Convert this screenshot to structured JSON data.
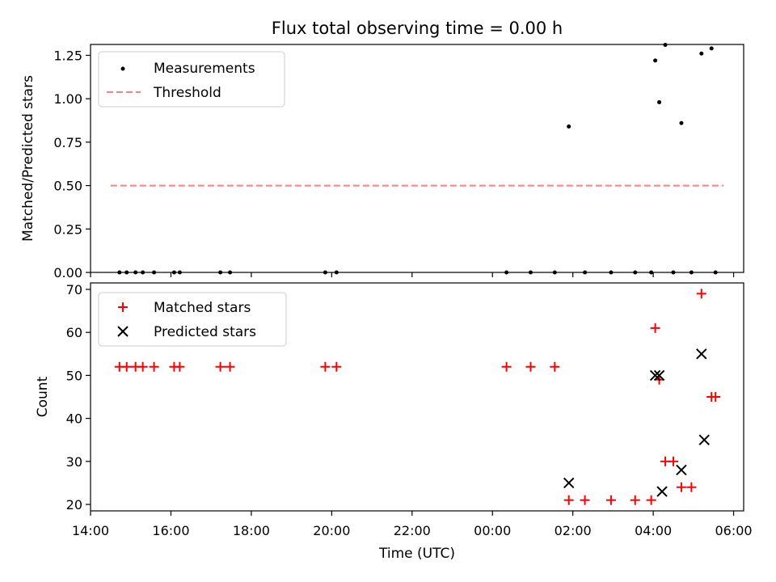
{
  "chart_data": {
    "title": "Flux total observing time = 0.00 h",
    "x_axis": {
      "label": "Time (UTC)",
      "range_hours": [
        14.0,
        30.25
      ],
      "tick_hours": [
        14,
        16,
        18,
        20,
        22,
        24,
        26,
        28,
        30
      ],
      "tick_labels": [
        "14:00",
        "16:00",
        "18:00",
        "20:00",
        "22:00",
        "00:00",
        "02:00",
        "04:00",
        "06:00"
      ]
    },
    "panels": [
      {
        "type": "scatter",
        "ylabel": "Matched/Predicted stars",
        "ylim": [
          0,
          1.3125
        ],
        "yticks": [
          0,
          0.25,
          0.5,
          0.75,
          1.0,
          1.25
        ],
        "ytick_labels": [
          "0.00",
          "0.25",
          "0.50",
          "0.75",
          "1.00",
          "1.25"
        ],
        "legend_position": "upper-left",
        "series": [
          {
            "name": "Measurements",
            "marker": "dot",
            "color": "#000000",
            "x_hours": [
              14.72,
              14.9,
              15.12,
              15.3,
              15.58,
              16.08,
              16.22,
              17.23,
              17.47,
              19.84,
              20.12,
              24.35,
              24.95,
              25.55,
              25.9,
              26.3,
              26.95,
              27.55,
              27.95,
              28.05,
              28.15,
              28.3,
              28.5,
              28.7,
              28.95,
              29.2,
              29.45,
              29.55
            ],
            "y": [
              0,
              0,
              0,
              0,
              0,
              0,
              0,
              0,
              0,
              0,
              0,
              0,
              0,
              0,
              0.84,
              0,
              0,
              0,
              0,
              1.22,
              0.98,
              1.31,
              0,
              0.86,
              0,
              1.26,
              1.29,
              0
            ]
          },
          {
            "name": "Threshold",
            "style": "dashed",
            "color": "#ff7f7f",
            "x_hours": [
              14.5,
              29.75
            ],
            "y": [
              0.5,
              0.5
            ]
          }
        ]
      },
      {
        "type": "scatter",
        "ylabel": "Count",
        "ylim": [
          18.5,
          71.5
        ],
        "yticks": [
          20,
          30,
          40,
          50,
          60,
          70
        ],
        "ytick_labels": [
          "20",
          "30",
          "40",
          "50",
          "60",
          "70"
        ],
        "legend_position": "upper-left",
        "series": [
          {
            "name": "Matched stars",
            "marker": "plus",
            "color": "#ff0000",
            "x_hours": [
              14.72,
              14.9,
              15.12,
              15.3,
              15.58,
              16.08,
              16.22,
              17.23,
              17.47,
              19.84,
              20.12,
              24.35,
              24.95,
              25.55,
              25.9,
              26.3,
              26.95,
              27.55,
              27.95,
              28.05,
              28.15,
              28.3,
              28.5,
              28.7,
              28.95,
              29.2,
              29.45,
              29.55
            ],
            "y": [
              52,
              52,
              52,
              52,
              52,
              52,
              52,
              52,
              52,
              52,
              52,
              52,
              52,
              52,
              21,
              21,
              21,
              21,
              21,
              61,
              49,
              30,
              30,
              24,
              24,
              69,
              45,
              45
            ]
          },
          {
            "name": "Predicted stars",
            "marker": "x",
            "color": "#000000",
            "x_hours": [
              25.9,
              28.05,
              28.15,
              28.22,
              28.7,
              29.2,
              29.27
            ],
            "y": [
              25,
              50,
              50,
              23,
              28,
              55,
              35
            ]
          }
        ]
      }
    ]
  }
}
